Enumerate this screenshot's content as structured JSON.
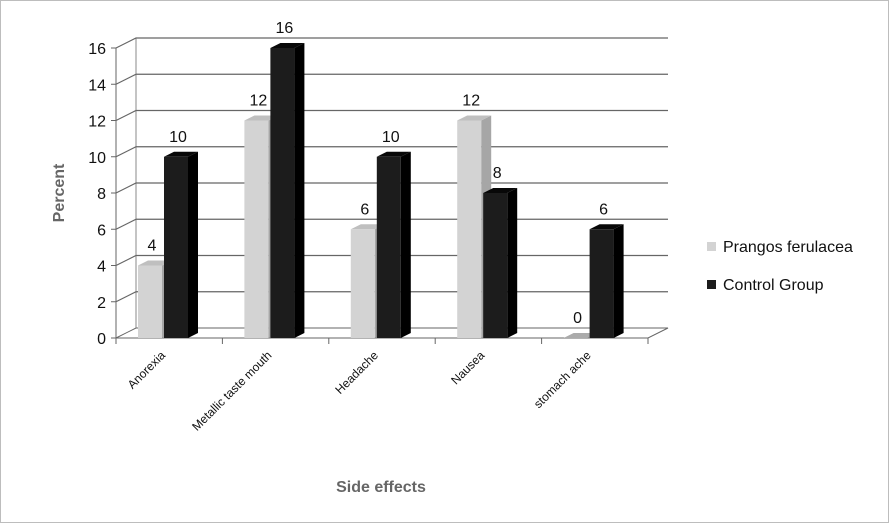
{
  "chart_data": {
    "type": "bar",
    "xlabel": "Side effects",
    "ylabel": "Percent",
    "ylim": [
      0,
      16
    ],
    "yticks": [
      0,
      2,
      4,
      6,
      8,
      10,
      12,
      14,
      16
    ],
    "grid": true,
    "legend_position": "right",
    "categories": [
      "Anorexia",
      "Metallic taste mouth",
      "Headache",
      "Nausea",
      "stomach ache"
    ],
    "series": [
      {
        "name": "Prangos ferulacea",
        "values": [
          4,
          12,
          6,
          12,
          0
        ],
        "color": "#d3d3d3"
      },
      {
        "name": "Control Group",
        "values": [
          10,
          16,
          10,
          8,
          6
        ],
        "color": "#1c1c1c"
      }
    ]
  }
}
